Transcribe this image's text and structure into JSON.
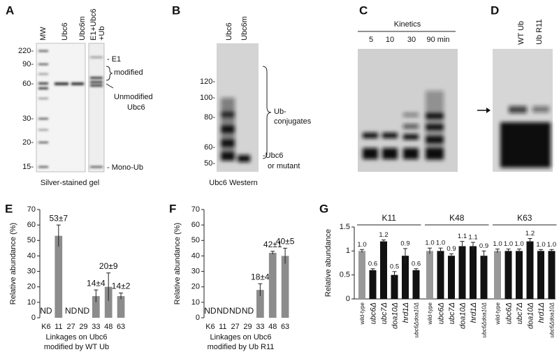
{
  "panels": {
    "A": {
      "letter": "A",
      "lanes": [
        "MW",
        "Ubc6",
        "Ubc6m"
      ],
      "lane4": [
        "E1+Ubc6",
        "+Ub"
      ],
      "markers": [
        "220-",
        "90-",
        "60-",
        "30-",
        "20-",
        "15-"
      ],
      "annotations": [
        "- E1",
        "modified",
        "Unmodified",
        "Ubc6",
        "- Mono-Ub"
      ],
      "caption": "Silver-stained gel"
    },
    "B": {
      "letter": "B",
      "lanes": [
        "Ubc6",
        "Ubc6m"
      ],
      "markers": [
        "120-",
        "100-",
        "80-",
        "60-",
        "50-"
      ],
      "annotations": [
        "Ub-",
        "conjugates",
        "-Ubc6",
        "or mutant"
      ],
      "caption": "Ubc6 Western"
    },
    "C": {
      "letter": "C",
      "heading": "Kinetics",
      "lanes": [
        "5",
        "10",
        "30",
        "90 min"
      ]
    },
    "D": {
      "letter": "D",
      "lanes": [
        "WT Ub",
        "Ub R11"
      ]
    }
  },
  "chart_data": [
    {
      "type": "bar",
      "panel": "E",
      "ylabel": "Relative abundance (%)",
      "xlabel": [
        "Linkages on Ubc6",
        "modified by WT Ub"
      ],
      "categories": [
        "K6",
        "11",
        "27",
        "29",
        "33",
        "48",
        "63"
      ],
      "values": [
        null,
        53,
        null,
        null,
        14,
        20,
        14
      ],
      "errors": [
        null,
        7,
        null,
        null,
        4,
        9,
        2
      ],
      "value_labels": [
        "ND",
        "53±7",
        "ND",
        "ND",
        "14±4",
        "20±9",
        "14±2"
      ],
      "ylim": [
        0,
        70
      ],
      "yticks": [
        0,
        10,
        20,
        30,
        40,
        50,
        60,
        70
      ],
      "color": "#8c8c8c"
    },
    {
      "type": "bar",
      "panel": "F",
      "ylabel": "Relative abundance (%)",
      "xlabel": [
        "Linkages on Ubc6",
        "modified by Ub R11"
      ],
      "categories": [
        "K6",
        "11",
        "27",
        "29",
        "33",
        "48",
        "63"
      ],
      "values": [
        null,
        null,
        null,
        null,
        18,
        42,
        40
      ],
      "errors": [
        null,
        null,
        null,
        null,
        4,
        1,
        5
      ],
      "value_labels": [
        "ND",
        "ND",
        "ND",
        "ND",
        "18±4",
        "42±1",
        "40±5"
      ],
      "ylim": [
        0,
        70
      ],
      "yticks": [
        0,
        10,
        20,
        30,
        40,
        50,
        60,
        70
      ],
      "color": "#8c8c8c"
    },
    {
      "type": "grouped_bar",
      "panel": "G",
      "ylabel": "Relative abundance",
      "categories": [
        "wild-type",
        "ubc6Δ",
        "ubc7Δ",
        "doa10Δ",
        "hrd1Δ",
        "ubc6Δdoa10Δ"
      ],
      "category_style": [
        "normal",
        "italic",
        "italic",
        "italic",
        "italic",
        "italic"
      ],
      "colors": [
        "#999999",
        "#111111",
        "#111111",
        "#111111",
        "#111111",
        "#111111"
      ],
      "groups": [
        {
          "name": "K11",
          "values": [
            1.0,
            0.6,
            1.2,
            0.5,
            0.9,
            0.6
          ],
          "errors": [
            0.03,
            0.03,
            0.03,
            0.07,
            0.15,
            0.03
          ],
          "value_labels": [
            "1.0",
            "0.6",
            "1.2",
            "0.5",
            "0.9",
            "0.6"
          ]
        },
        {
          "name": "K48",
          "values": [
            1.0,
            1.0,
            0.9,
            1.1,
            1.1,
            0.9
          ],
          "errors": [
            0.06,
            0.06,
            0.04,
            0.1,
            0.08,
            0.1
          ],
          "value_labels": [
            "1.0",
            "1.0",
            "0.9",
            "1.1",
            "1.1",
            "0.9"
          ]
        },
        {
          "name": "K63",
          "values": [
            1.0,
            1.0,
            1.0,
            1.2,
            1.0,
            1.0
          ],
          "errors": [
            0.04,
            0.04,
            0.04,
            0.06,
            0.03,
            0.03
          ],
          "value_labels": [
            "1.0",
            "1.0",
            "1.0",
            "1.2",
            "1.0",
            "1.0"
          ]
        }
      ],
      "ylim": [
        0,
        1.5
      ],
      "yticks": [
        0,
        0.5,
        1,
        1.5
      ]
    }
  ]
}
